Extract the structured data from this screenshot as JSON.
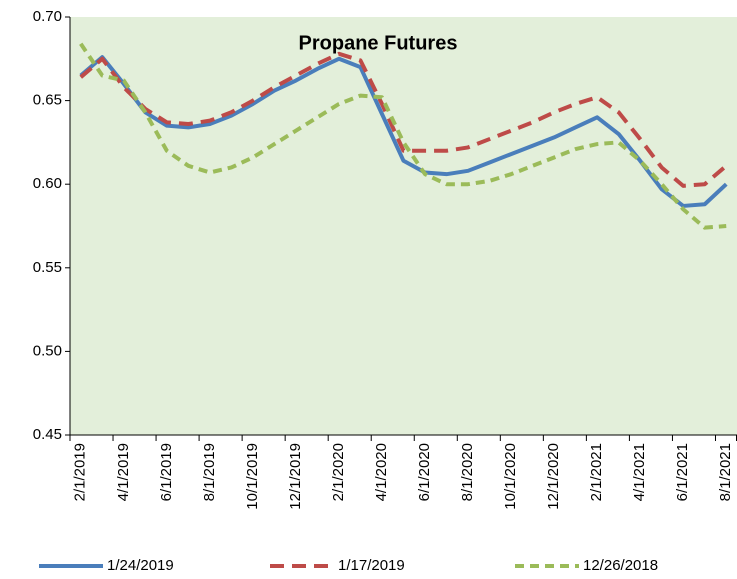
{
  "chart_data": {
    "type": "line",
    "title": "Propane Futures",
    "categories": [
      "2/1/2019",
      null,
      "4/1/2019",
      null,
      "6/1/2019",
      null,
      "8/1/2019",
      null,
      "10/1/2019",
      null,
      "12/1/2019",
      null,
      "2/1/2020",
      null,
      "4/1/2020",
      null,
      "6/1/2020",
      null,
      "8/1/2020",
      null,
      "10/1/2020",
      null,
      "12/1/2020",
      null,
      "2/1/2021",
      null,
      "4/1/2021",
      null,
      "6/1/2021",
      null,
      "8/1/2021"
    ],
    "series": [
      {
        "name": "1/24/2019",
        "color": "#4a7ebb",
        "dash": "solid",
        "values": [
          0.665,
          0.676,
          0.66,
          0.643,
          0.635,
          0.634,
          0.636,
          0.641,
          0.648,
          0.656,
          0.662,
          0.669,
          0.675,
          0.67,
          0.642,
          0.614,
          0.607,
          0.606,
          0.608,
          0.613,
          0.618,
          0.623,
          0.628,
          0.634,
          0.64,
          0.63,
          0.614,
          0.597,
          0.587,
          0.588,
          0.6
        ]
      },
      {
        "name": "1/17/2019",
        "color": "#be4b48",
        "dash": "dashed",
        "values": [
          0.664,
          0.675,
          0.658,
          0.645,
          0.637,
          0.636,
          0.638,
          0.643,
          0.65,
          0.658,
          0.665,
          0.672,
          0.678,
          0.674,
          0.648,
          0.62,
          0.62,
          0.62,
          0.622,
          0.627,
          0.632,
          0.637,
          0.643,
          0.648,
          0.652,
          0.643,
          0.627,
          0.61,
          0.599,
          0.6,
          0.611
        ]
      },
      {
        "name": "12/26/2018",
        "color": "#9bbb59",
        "dash": "short-dashed",
        "values": [
          0.684,
          0.665,
          0.662,
          0.643,
          0.62,
          0.611,
          0.607,
          0.61,
          0.616,
          0.624,
          0.632,
          0.64,
          0.648,
          0.653,
          0.652,
          0.625,
          0.606,
          0.6,
          0.6,
          0.602,
          0.606,
          0.611,
          0.616,
          0.621,
          0.624,
          0.625,
          0.614,
          0.6,
          0.585,
          0.574,
          0.575
        ]
      }
    ],
    "ylim": [
      0.45,
      0.7
    ],
    "yticks": [
      {
        "value": 0.45,
        "label": "0.45"
      },
      {
        "value": 0.5,
        "label": "0.50"
      },
      {
        "value": 0.55,
        "label": "0.55"
      },
      {
        "value": 0.6,
        "label": "0.60"
      },
      0.65,
      {
        "value": 0.7,
        "label": "0.70"
      }
    ],
    "grid": false,
    "plot_background": "#e3efda",
    "legend": "bottom"
  }
}
